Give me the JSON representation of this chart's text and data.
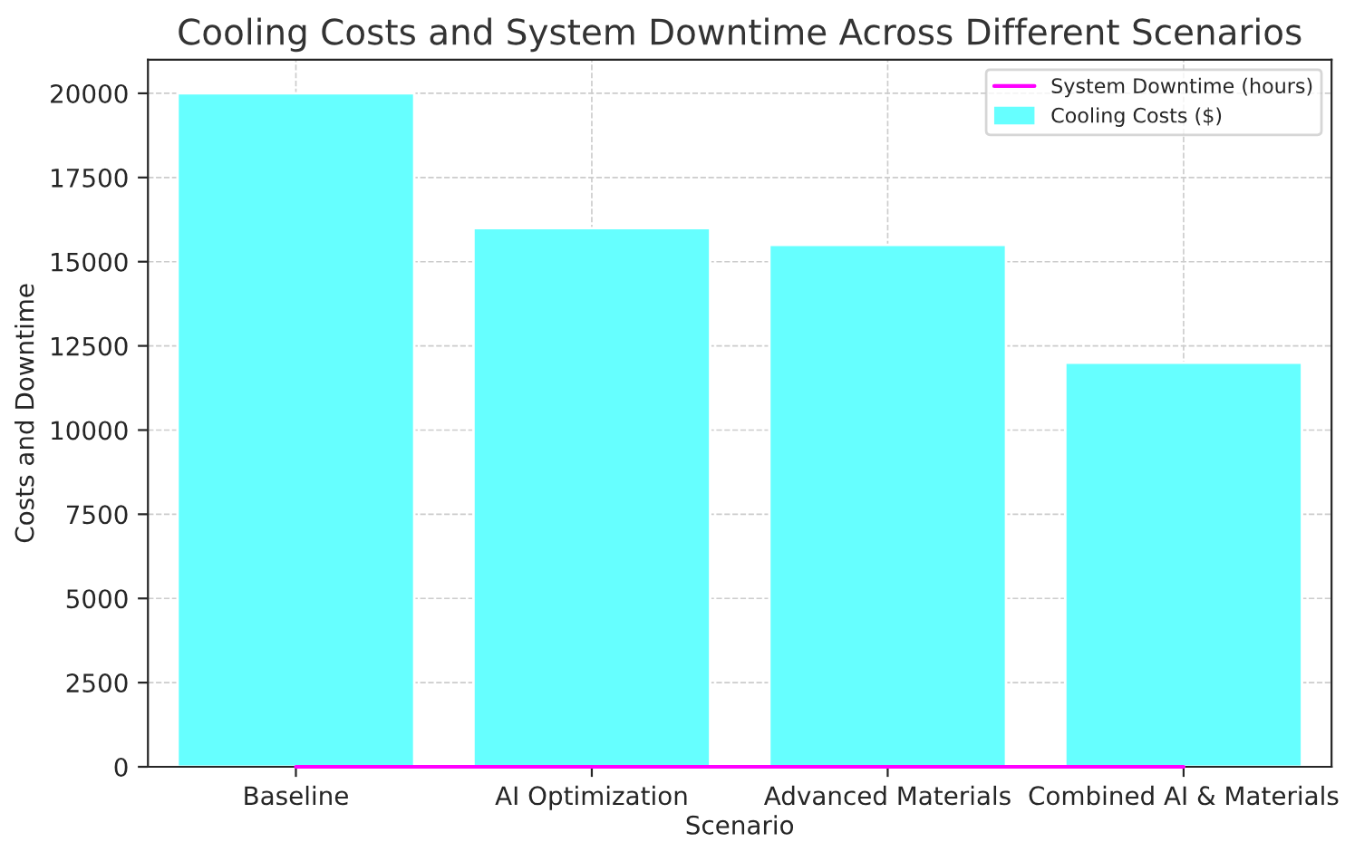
{
  "chart_data": {
    "type": "bar",
    "title": "Cooling Costs and System Downtime Across Different Scenarios",
    "xlabel": "Scenario",
    "ylabel": "Costs and Downtime",
    "categories": [
      "Baseline",
      "AI Optimization",
      "Advanced Materials",
      "Combined AI & Materials"
    ],
    "series": [
      {
        "name": "Cooling Costs ($)",
        "color": "#66ffff",
        "values": [
          20000,
          16000,
          15500,
          12000
        ]
      },
      {
        "name": "System Downtime (hours)",
        "type": "line",
        "color": "#ff00ff",
        "values": [
          0,
          0,
          0,
          0
        ]
      }
    ],
    "ylim": [
      0,
      21000
    ],
    "yticks": [
      0,
      2500,
      5000,
      7500,
      10000,
      12500,
      15000,
      17500,
      20000
    ],
    "grid": true,
    "legend": "top right",
    "marker": "none",
    "line_style": "solid"
  }
}
